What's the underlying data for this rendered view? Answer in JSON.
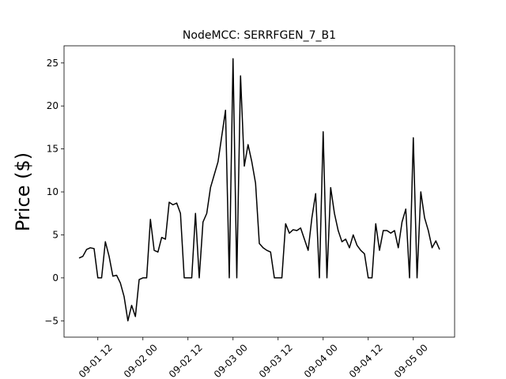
{
  "chart_data": {
    "type": "line",
    "title": "NodeMCC: SERRFGEN_7_B1",
    "y_label": "Price ($)",
    "x": [
      "09-01 07",
      "09-01 08",
      "09-01 09",
      "09-01 10",
      "09-01 11",
      "09-01 12",
      "09-01 13",
      "09-01 14",
      "09-01 15",
      "09-01 16",
      "09-01 17",
      "09-01 18",
      "09-01 19",
      "09-01 20",
      "09-01 21",
      "09-01 22",
      "09-01 23",
      "09-02 00",
      "09-02 01",
      "09-02 02",
      "09-02 03",
      "09-02 04",
      "09-02 05",
      "09-02 06",
      "09-02 07",
      "09-02 08",
      "09-02 09",
      "09-02 10",
      "09-02 11",
      "09-02 12",
      "09-02 13",
      "09-02 14",
      "09-02 15",
      "09-02 16",
      "09-02 17",
      "09-02 18",
      "09-02 19",
      "09-02 20",
      "09-02 21",
      "09-02 22",
      "09-02 23",
      "09-03 00",
      "09-03 01",
      "09-03 02",
      "09-03 03",
      "09-03 04",
      "09-03 05",
      "09-03 06",
      "09-03 07",
      "09-03 08",
      "09-03 09",
      "09-03 10",
      "09-03 11",
      "09-03 12",
      "09-03 13",
      "09-03 14",
      "09-03 15",
      "09-03 16",
      "09-03 17",
      "09-03 18",
      "09-03 19",
      "09-03 20",
      "09-03 21",
      "09-03 22",
      "09-03 23",
      "09-04 00",
      "09-04 01",
      "09-04 02",
      "09-04 03",
      "09-04 04",
      "09-04 05",
      "09-04 06",
      "09-04 07",
      "09-04 08",
      "09-04 09",
      "09-04 10",
      "09-04 11",
      "09-04 12",
      "09-04 13",
      "09-04 14",
      "09-04 15",
      "09-04 16",
      "09-04 17",
      "09-04 18",
      "09-04 19",
      "09-04 20",
      "09-04 21",
      "09-04 22",
      "09-04 23",
      "09-05 00",
      "09-05 01",
      "09-05 02",
      "09-05 03",
      "09-05 04",
      "09-05 05",
      "09-05 06",
      "09-05 07"
    ],
    "series": [
      {
        "color": "#000000",
        "values": [
          2.3,
          2.5,
          3.3,
          3.5,
          3.4,
          0,
          0,
          4.2,
          2.5,
          0.2,
          0.3,
          -0.6,
          -2.2,
          -5.0,
          -3.2,
          -4.5,
          -0.2,
          0,
          0,
          6.8,
          3.2,
          3.0,
          4.7,
          4.5,
          8.8,
          8.5,
          8.7,
          7.5,
          0,
          0,
          0,
          7.5,
          0,
          6.5,
          7.5,
          10.5,
          12,
          13.5,
          16.5,
          19.5,
          0,
          25.5,
          0,
          23.5,
          13,
          15.5,
          13.5,
          11,
          4,
          3.5,
          3.2,
          3.0,
          0,
          0,
          0,
          6.3,
          5.2,
          5.6,
          5.5,
          5.8,
          4.5,
          3.2,
          7.0,
          9.8,
          0,
          17,
          0,
          10.5,
          7.5,
          5.5,
          4.2,
          4.5,
          3.5,
          5.0,
          3.8,
          3.2,
          2.8,
          0,
          0,
          6.3,
          3.2,
          5.5,
          5.5,
          5.2,
          5.5,
          3.5,
          6.5,
          8.0,
          0,
          16.3,
          0,
          10,
          7.0,
          5.5,
          3.5,
          4.3,
          3.3
        ]
      }
    ],
    "xlim": [
      "09-01 03",
      "09-05 11"
    ],
    "xticks": [
      "09-01 12",
      "09-02 00",
      "09-02 12",
      "09-03 00",
      "09-03 12",
      "09-04 00",
      "09-04 12",
      "09-05 00"
    ],
    "ylim": [
      -6.9,
      27
    ],
    "yticks": [
      {
        "value": -5,
        "label": "−5"
      },
      0,
      5,
      10,
      15,
      20,
      25
    ]
  }
}
